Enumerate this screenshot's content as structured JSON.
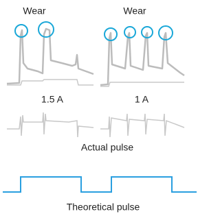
{
  "top_labels": [
    "Wear",
    "Wear"
  ],
  "current_labels": [
    "1.5 A",
    "1 A"
  ],
  "actual_caption": "Actual pulse",
  "theoretical_caption": "Theoretical pulse"
}
